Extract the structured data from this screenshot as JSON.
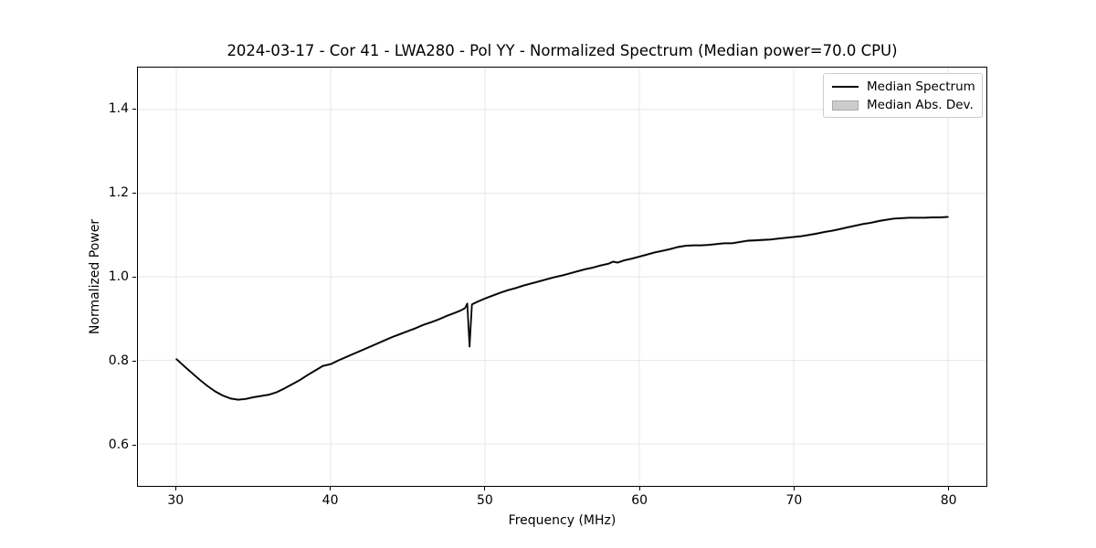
{
  "chart_data": {
    "type": "line",
    "title": "2024-03-17 - Cor 41 - LWA280 - Pol YY - Normalized Spectrum (Median power=70.0 CPU)",
    "xlabel": "Frequency (MHz)",
    "ylabel": "Normalized Power",
    "xlim": [
      27.5,
      82.5
    ],
    "ylim": [
      0.5,
      1.5
    ],
    "xticks": [
      30,
      40,
      50,
      60,
      70,
      80
    ],
    "yticks": [
      0.6,
      0.8,
      1.0,
      1.2,
      1.4
    ],
    "grid": true,
    "grid_color": "#e7e7e7",
    "axis_color": "#000000",
    "background_color": "#ffffff",
    "legend": {
      "position": "upper right",
      "entries": [
        {
          "label": "Median Spectrum",
          "type": "line",
          "color": "#000000"
        },
        {
          "label": "Median Abs. Dev.",
          "type": "patch",
          "fill": "#cccccc",
          "edge": "#aaaaaa"
        }
      ]
    },
    "series": [
      {
        "name": "Median Spectrum",
        "type": "line",
        "color": "#000000",
        "linewidth": 1.8,
        "x": [
          30,
          30.5,
          31,
          31.5,
          32,
          32.5,
          33,
          33.5,
          34,
          34.5,
          35,
          35.5,
          36,
          36.5,
          37,
          37.5,
          38,
          38.5,
          39,
          39.5,
          40,
          40.5,
          41,
          41.5,
          42,
          42.5,
          43,
          43.5,
          44,
          44.5,
          45,
          45.5,
          46,
          46.5,
          47,
          47.5,
          48,
          48.4,
          48.7,
          48.85,
          49.0,
          49.15,
          49.5,
          50,
          50.5,
          51,
          51.5,
          52,
          52.5,
          53,
          53.5,
          54,
          54.5,
          55,
          55.5,
          56,
          56.5,
          57,
          57.5,
          58,
          58.3,
          58.6,
          59,
          59.5,
          60,
          60.5,
          61,
          61.5,
          62,
          62.5,
          63,
          63.5,
          64,
          64.5,
          65,
          65.5,
          66,
          66.5,
          67,
          67.5,
          68,
          68.5,
          69,
          69.5,
          70,
          70.5,
          71,
          71.5,
          72,
          72.5,
          73,
          73.5,
          74,
          74.5,
          75,
          75.5,
          76,
          76.5,
          77,
          77.5,
          78,
          78.5,
          79,
          79.5,
          80
        ],
        "y": [
          0.803,
          0.786,
          0.77,
          0.754,
          0.739,
          0.726,
          0.716,
          0.709,
          0.706,
          0.708,
          0.712,
          0.715,
          0.718,
          0.724,
          0.733,
          0.743,
          0.753,
          0.765,
          0.776,
          0.787,
          0.791,
          0.8,
          0.808,
          0.816,
          0.824,
          0.832,
          0.84,
          0.848,
          0.856,
          0.863,
          0.87,
          0.877,
          0.885,
          0.891,
          0.898,
          0.906,
          0.913,
          0.919,
          0.925,
          0.936,
          0.833,
          0.934,
          0.94,
          0.948,
          0.955,
          0.962,
          0.968,
          0.973,
          0.979,
          0.984,
          0.989,
          0.994,
          0.999,
          1.003,
          1.008,
          1.013,
          1.018,
          1.022,
          1.027,
          1.031,
          1.036,
          1.034,
          1.039,
          1.043,
          1.048,
          1.053,
          1.058,
          1.062,
          1.066,
          1.071,
          1.074,
          1.075,
          1.075,
          1.076,
          1.078,
          1.08,
          1.08,
          1.083,
          1.086,
          1.087,
          1.088,
          1.089,
          1.091,
          1.093,
          1.095,
          1.097,
          1.1,
          1.103,
          1.107,
          1.11,
          1.114,
          1.118,
          1.122,
          1.126,
          1.129,
          1.133,
          1.136,
          1.139,
          1.14,
          1.141,
          1.141,
          1.141,
          1.142,
          1.142,
          1.143
        ]
      },
      {
        "name": "Median Abs. Dev.",
        "type": "band",
        "color": "#c8c8c8",
        "mad": 0.003
      }
    ]
  }
}
